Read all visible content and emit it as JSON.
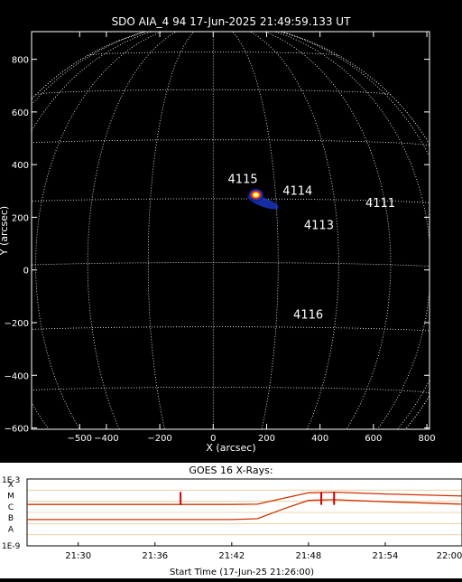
{
  "image": {
    "title": "SDO AIA_4 94 17-Jun-2025 21:49:59.133 UT",
    "xlabel": "X (arcsec)",
    "ylabel": "Y (arcsec)",
    "xticks": [
      -500,
      -400,
      -200,
      0,
      200,
      400,
      600,
      800
    ],
    "yticks": [
      -600,
      -400,
      -200,
      0,
      200,
      400,
      600,
      800
    ],
    "xrange": [
      -680,
      810
    ],
    "yrange": [
      -605,
      905
    ],
    "regions": [
      {
        "label": "4115",
        "x": 55,
        "y": 330
      },
      {
        "label": "4114",
        "x": 260,
        "y": 285
      },
      {
        "label": "4111",
        "x": 570,
        "y": 240
      },
      {
        "label": "4113",
        "x": 340,
        "y": 155
      },
      {
        "label": "4116",
        "x": 300,
        "y": -185
      }
    ],
    "flare": {
      "x": 160,
      "y": 285
    }
  },
  "goes": {
    "title": "GOES 16 X-Rays:",
    "xlabel": "Start Time (17-Jun-25 21:26:00)",
    "y_top_label": "1E-3",
    "y_bottom_label": "1E-9",
    "classes": [
      "X",
      "M",
      "C",
      "B",
      "A"
    ],
    "time_ticks": [
      "21:30",
      "21:36",
      "21:42",
      "21:48",
      "21:54",
      "22:00"
    ],
    "colors": {
      "line": "#cc3300",
      "marker": "#cc0000",
      "grid": "#e8c89a"
    }
  },
  "chart_data": {
    "type": "line",
    "title": "GOES 16 X-Rays:",
    "xlabel": "Start Time (17-Jun-25 21:26:00)",
    "ylabel": "",
    "x": [
      "21:26",
      "21:30",
      "21:36",
      "21:42",
      "21:44",
      "21:46",
      "21:48",
      "21:50",
      "21:54",
      "22:00"
    ],
    "series": [
      {
        "values": [
          5.2e-06,
          5.2e-06,
          5.2e-06,
          5.2e-06,
          5.5e-06,
          1.8e-05,
          5.8e-05,
          6.5e-05,
          4.5e-05,
          3e-05
        ]
      },
      {
        "values": [
          2.3e-07,
          2.3e-07,
          2.3e-07,
          2.3e-07,
          2.7e-07,
          2e-06,
          1.2e-05,
          1.4e-05,
          9e-06,
          5.5e-06
        ]
      }
    ],
    "markers": [
      "21:38",
      "21:49",
      "21:50"
    ],
    "ylim": [
      1e-09,
      0.001
    ],
    "log_y": true
  }
}
